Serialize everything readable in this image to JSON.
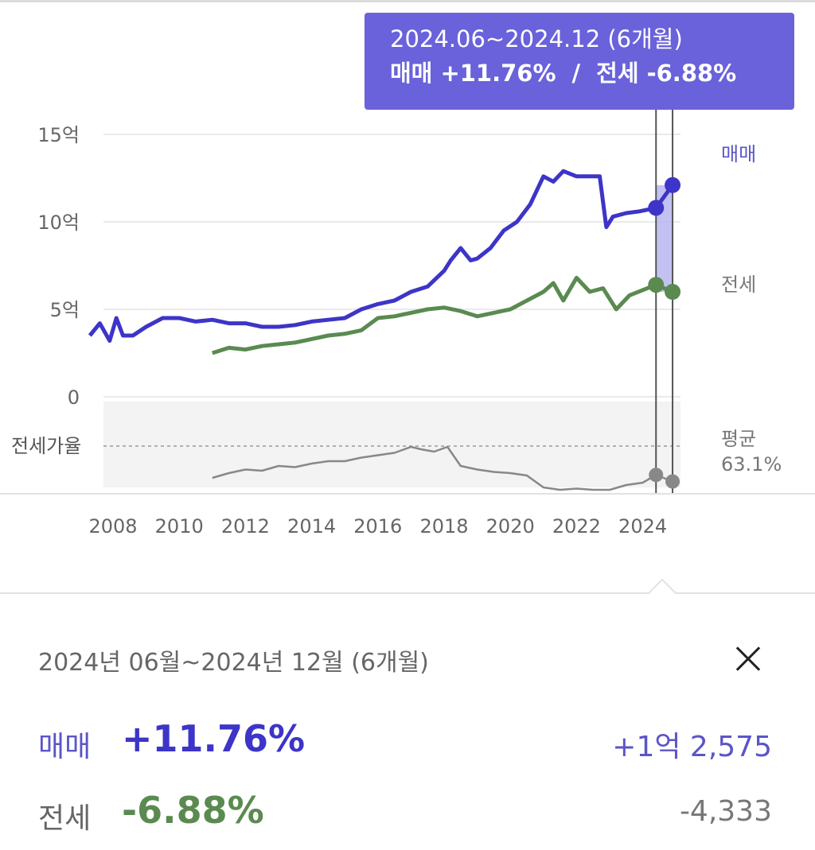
{
  "tooltip": {
    "period": "2024.06~2024.12 (6개월)",
    "sale_text": "매매 +11.76%",
    "separator": "/",
    "jeonse_text": "전세 -6.88%"
  },
  "chart_data": {
    "type": "line",
    "x_ticks": [
      "2008",
      "2010",
      "2012",
      "2014",
      "2016",
      "2018",
      "2020",
      "2022",
      "2024"
    ],
    "y_ticks": [
      "0",
      "5억",
      "10억",
      "15억"
    ],
    "ylim": [
      0,
      15
    ],
    "series": [
      {
        "name": "매매",
        "color": "#3d35c8",
        "x": [
          2007.3,
          2007.6,
          2007.9,
          2008.1,
          2008.3,
          2008.6,
          2009,
          2009.5,
          2010,
          2010.5,
          2011,
          2011.5,
          2012,
          2012.5,
          2013,
          2013.5,
          2014,
          2014.5,
          2015,
          2015.5,
          2016,
          2016.5,
          2017,
          2017.5,
          2018,
          2018.2,
          2018.5,
          2018.8,
          2019,
          2019.4,
          2019.8,
          2020.2,
          2020.6,
          2021,
          2021.3,
          2021.6,
          2022,
          2022.4,
          2022.7,
          2022.9,
          2023.1,
          2023.5,
          2023.9,
          2024.4,
          2024.9
        ],
        "y": [
          3.5,
          4.2,
          3.2,
          4.5,
          3.5,
          3.5,
          4.0,
          4.5,
          4.5,
          4.3,
          4.4,
          4.2,
          4.2,
          4.0,
          4.0,
          4.1,
          4.3,
          4.4,
          4.5,
          5.0,
          5.3,
          5.5,
          6.0,
          6.3,
          7.2,
          7.8,
          8.5,
          7.8,
          7.9,
          8.5,
          9.5,
          10.0,
          11.0,
          12.6,
          12.3,
          12.9,
          12.6,
          12.6,
          12.6,
          9.7,
          10.3,
          10.5,
          10.6,
          10.8,
          12.1
        ]
      },
      {
        "name": "전세",
        "color": "#5a8a50",
        "x": [
          2011,
          2011.5,
          2012,
          2012.5,
          2013,
          2013.5,
          2014,
          2014.5,
          2015,
          2015.5,
          2016,
          2016.5,
          2017,
          2017.5,
          2018,
          2018.5,
          2019,
          2019.5,
          2020,
          2020.5,
          2021,
          2021.3,
          2021.6,
          2022,
          2022.4,
          2022.8,
          2023.2,
          2023.6,
          2024,
          2024.4,
          2024.9
        ],
        "y": [
          2.5,
          2.8,
          2.7,
          2.9,
          3.0,
          3.1,
          3.3,
          3.5,
          3.6,
          3.8,
          4.5,
          4.6,
          4.8,
          5.0,
          5.1,
          4.9,
          4.6,
          4.8,
          5.0,
          5.5,
          6.0,
          6.5,
          5.5,
          6.8,
          6.0,
          6.2,
          5.0,
          5.8,
          6.1,
          6.4,
          6.0
        ]
      },
      {
        "name": "전세가율",
        "color": "#888888",
        "x": [
          2011,
          2011.5,
          2012,
          2012.5,
          2013,
          2013.5,
          2014,
          2014.5,
          2015,
          2015.5,
          2016,
          2016.5,
          2017,
          2017.3,
          2017.7,
          2018.1,
          2018.5,
          2019,
          2019.5,
          2020,
          2020.5,
          2021,
          2021.5,
          2022,
          2022.5,
          2023,
          2023.5,
          2024,
          2024.4,
          2024.9
        ],
        "y": [
          0.56,
          0.6,
          0.63,
          0.62,
          0.66,
          0.65,
          0.68,
          0.7,
          0.7,
          0.73,
          0.75,
          0.77,
          0.82,
          0.8,
          0.78,
          0.82,
          0.66,
          0.63,
          0.61,
          0.6,
          0.58,
          0.48,
          0.46,
          0.47,
          0.46,
          0.46,
          0.5,
          0.52,
          0.585,
          0.53
        ]
      }
    ],
    "highlight": {
      "from": 2024.4,
      "to": 2024.9
    },
    "right_labels": {
      "sale": "매매",
      "jeonse": "전세",
      "avg_label": "평균",
      "avg_value": "63.1%"
    },
    "ratio_label": "전세가율",
    "grid": true
  },
  "summary": {
    "period": "2024년 06월~2024년 12월 (6개월)",
    "sale": {
      "label": "매매",
      "pct": "+11.76%",
      "amount": "+1억 2,575"
    },
    "jeonse": {
      "label": "전세",
      "pct": "-6.88%",
      "amount": "-4,333"
    }
  },
  "colors": {
    "accent": "#6a62db",
    "sale": "#3d35c8",
    "jeonse": "#5a8a50",
    "ratio": "#888888"
  }
}
